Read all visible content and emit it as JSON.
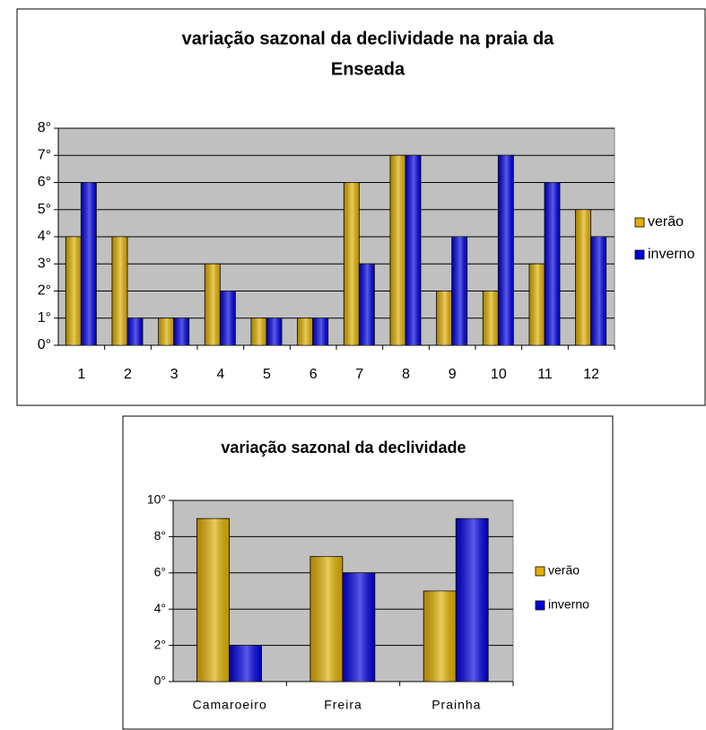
{
  "chart_data": [
    {
      "type": "bar",
      "title": [
        "variação sazonal da declividade na praia da",
        "Enseada"
      ],
      "categories": [
        "1",
        "2",
        "3",
        "4",
        "5",
        "6",
        "7",
        "8",
        "9",
        "10",
        "11",
        "12"
      ],
      "series": [
        {
          "name": "verão",
          "color": "#e0b000",
          "values": [
            4,
            4,
            1,
            3,
            1,
            1,
            6,
            7,
            2,
            2,
            3,
            5
          ]
        },
        {
          "name": "inverno",
          "color": "#0000e0",
          "values": [
            6,
            1,
            1,
            2,
            1,
            1,
            3,
            7,
            4,
            7,
            6,
            4
          ]
        }
      ],
      "ylim": [
        0,
        8
      ],
      "yticks": [
        {
          "value": 0,
          "label": "0°"
        },
        {
          "value": 1,
          "label": "1°"
        },
        {
          "value": 2,
          "label": "2°"
        },
        {
          "value": 3,
          "label": "3°"
        },
        {
          "value": 4,
          "label": "4°"
        },
        {
          "value": 5,
          "label": "5°"
        },
        {
          "value": 6,
          "label": "6°"
        },
        {
          "value": 7,
          "label": "7°"
        },
        {
          "value": 8,
          "label": "8°"
        }
      ],
      "grid": true,
      "legend": "right"
    },
    {
      "type": "bar",
      "title": [
        "variação sazonal da declividade"
      ],
      "categories": [
        "Camaroeiro",
        "Freira",
        "Prainha"
      ],
      "series": [
        {
          "name": "verão",
          "color": "#e0b000",
          "values": [
            9,
            6.9,
            5
          ]
        },
        {
          "name": "inverno",
          "color": "#0000e0",
          "values": [
            2,
            6,
            9
          ]
        }
      ],
      "ylim": [
        0,
        10
      ],
      "yticks": [
        {
          "value": 0,
          "label": "0°"
        },
        {
          "value": 2,
          "label": "2°"
        },
        {
          "value": 4,
          "label": "4°"
        },
        {
          "value": 6,
          "label": "6°"
        },
        {
          "value": 8,
          "label": "8°"
        },
        {
          "value": 10,
          "label": "10°"
        }
      ],
      "grid": true,
      "legend": "right"
    }
  ]
}
